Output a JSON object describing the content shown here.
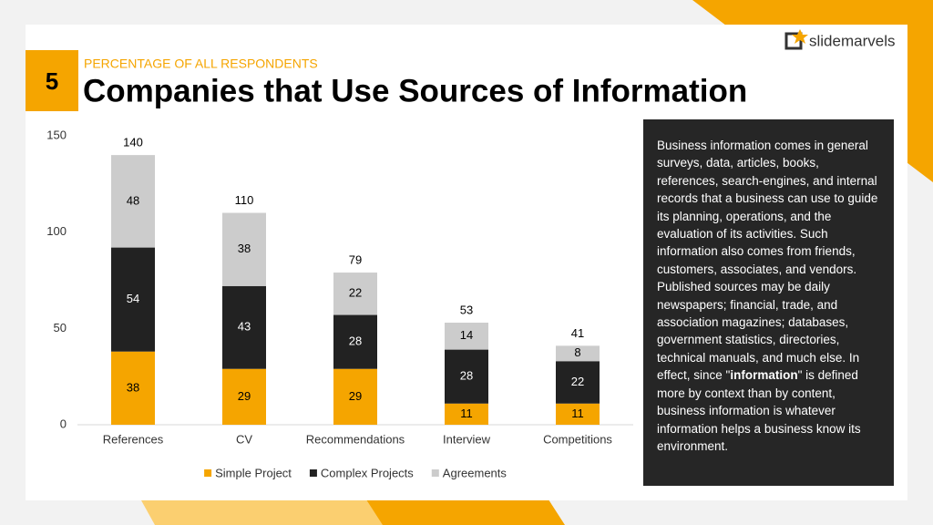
{
  "slide_number": "5",
  "logo": "slidemarvels",
  "description": {
    "before": "Business information comes in general surveys, data, articles, books, references, search-engines, and internal records that a business can use to guide its planning, operations, and the evaluation of its activities. Such information also comes from friends, customers, associates, and vendors. Published sources may be daily newspapers; financial, trade, and association magazines; databases, government statistics, directories, technical manuals, and much else. In effect, since \"",
    "bold": "information",
    "after": "\" is defined more by context than by content, business information is whatever information helps a business know its environment."
  },
  "chart_data": {
    "type": "stacked_bar",
    "subtitle": "PERCENTAGE OF ALL RESPONDENTS",
    "title": "Companies that Use Sources of Information",
    "categories": [
      "References",
      "CV",
      "Recommendations",
      "Interview",
      "Competitions"
    ],
    "series": [
      {
        "name": "Simple Project",
        "color": "#f5a500",
        "values": [
          38,
          29,
          29,
          11,
          11
        ]
      },
      {
        "name": "Complex Projects",
        "color": "#222222",
        "values": [
          54,
          43,
          28,
          28,
          22
        ]
      },
      {
        "name": "Agreements",
        "color": "#cccccc",
        "values": [
          48,
          38,
          22,
          14,
          8
        ]
      }
    ],
    "totals": [
      140,
      110,
      79,
      53,
      41
    ],
    "ylim": [
      0,
      150
    ],
    "yticks": [
      0,
      50,
      100,
      150
    ],
    "grid": false,
    "legend": "bottom"
  }
}
